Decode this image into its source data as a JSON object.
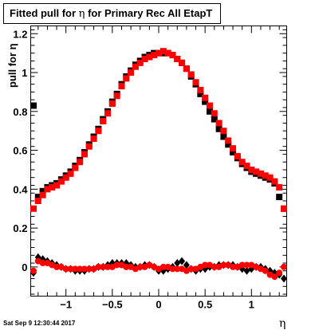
{
  "title": {
    "prefix": "Fitted pull for ",
    "greek": "η",
    "suffix": " for Primary Rec All EtapT"
  },
  "ylabel": "pull for η",
  "xlabel": "η",
  "timestamp": "Sat Sep  9 12:30:44 2017",
  "colors": {
    "series_black": "#000000",
    "series_red": "#ff0000",
    "frame": "#000000"
  },
  "chart_data": {
    "type": "scatter",
    "xlim": [
      -1.38,
      1.38
    ],
    "ylim": [
      -0.15,
      1.24
    ],
    "xticks": [
      -1,
      -0.5,
      0,
      0.5,
      1
    ],
    "xtick_labels": [
      "−1",
      "−0.5",
      "0",
      "0.5",
      "1"
    ],
    "yticks": [
      0,
      0.2,
      0.4,
      0.6,
      0.8,
      1,
      1.2
    ],
    "ytick_labels": [
      "0",
      "0.2",
      "0.4",
      "0.6",
      "0.8",
      "1",
      "1.2"
    ],
    "grid": false,
    "legend": false,
    "series": [
      {
        "color": "#000000",
        "marker": "square",
        "x": [
          -1.35,
          -1.3,
          -1.25,
          -1.2,
          -1.15,
          -1.1,
          -1.05,
          -1.0,
          -0.95,
          -0.9,
          -0.85,
          -0.8,
          -0.75,
          -0.7,
          -0.65,
          -0.6,
          -0.55,
          -0.5,
          -0.45,
          -0.4,
          -0.35,
          -0.3,
          -0.25,
          -0.2,
          -0.15,
          -0.1,
          -0.05,
          0.0,
          0.05,
          0.1,
          0.15,
          0.2,
          0.25,
          0.3,
          0.35,
          0.4,
          0.45,
          0.5,
          0.55,
          0.6,
          0.65,
          0.7,
          0.75,
          0.8,
          0.85,
          0.9,
          0.95,
          1.0,
          1.05,
          1.1,
          1.15,
          1.2,
          1.25,
          1.3,
          1.35
        ],
        "y": [
          0.83,
          0.36,
          0.39,
          0.41,
          0.42,
          0.43,
          0.45,
          0.47,
          0.49,
          0.52,
          0.55,
          0.59,
          0.63,
          0.67,
          0.71,
          0.76,
          0.8,
          0.85,
          0.89,
          0.94,
          0.98,
          1.01,
          1.04,
          1.06,
          1.08,
          1.09,
          1.1,
          1.1,
          1.1,
          1.1,
          1.09,
          1.07,
          1.05,
          1.02,
          0.98,
          0.94,
          0.89,
          0.85,
          0.8,
          0.76,
          0.71,
          0.67,
          0.63,
          0.59,
          0.56,
          0.53,
          0.51,
          0.49,
          0.48,
          0.47,
          0.46,
          0.45,
          0.43,
          0.36,
          0.3
        ]
      },
      {
        "color": "#ff0000",
        "marker": "square",
        "x": [
          -1.35,
          -1.3,
          -1.25,
          -1.2,
          -1.15,
          -1.1,
          -1.05,
          -1.0,
          -0.95,
          -0.9,
          -0.85,
          -0.8,
          -0.75,
          -0.7,
          -0.65,
          -0.6,
          -0.55,
          -0.5,
          -0.45,
          -0.4,
          -0.35,
          -0.3,
          -0.25,
          -0.2,
          -0.15,
          -0.1,
          -0.05,
          0.0,
          0.05,
          0.1,
          0.15,
          0.2,
          0.25,
          0.3,
          0.35,
          0.4,
          0.45,
          0.5,
          0.55,
          0.6,
          0.65,
          0.7,
          0.75,
          0.8,
          0.85,
          0.9,
          0.95,
          1.0,
          1.05,
          1.1,
          1.15,
          1.2,
          1.25,
          1.3,
          1.35
        ],
        "y": [
          0.3,
          0.34,
          0.37,
          0.4,
          0.41,
          0.42,
          0.44,
          0.46,
          0.48,
          0.51,
          0.54,
          0.58,
          0.62,
          0.66,
          0.7,
          0.75,
          0.79,
          0.84,
          0.88,
          0.93,
          0.97,
          1.0,
          1.03,
          1.05,
          1.07,
          1.08,
          1.09,
          1.1,
          1.11,
          1.1,
          1.09,
          1.07,
          1.05,
          1.02,
          0.99,
          0.95,
          0.91,
          0.87,
          0.83,
          0.79,
          0.74,
          0.7,
          0.65,
          0.61,
          0.57,
          0.54,
          0.52,
          0.5,
          0.49,
          0.48,
          0.47,
          0.46,
          0.44,
          0.41,
          0.3
        ]
      },
      {
        "color": "#000000",
        "marker": "diamond",
        "x": [
          -1.35,
          -1.3,
          -1.25,
          -1.2,
          -1.15,
          -1.1,
          -1.05,
          -1.0,
          -0.95,
          -0.9,
          -0.85,
          -0.8,
          -0.75,
          -0.7,
          -0.65,
          -0.6,
          -0.55,
          -0.5,
          -0.45,
          -0.4,
          -0.35,
          -0.3,
          -0.25,
          -0.2,
          -0.15,
          -0.1,
          -0.05,
          0.0,
          0.05,
          0.1,
          0.15,
          0.2,
          0.25,
          0.3,
          0.35,
          0.4,
          0.45,
          0.5,
          0.55,
          0.6,
          0.65,
          0.7,
          0.75,
          0.8,
          0.85,
          0.9,
          0.95,
          1.0,
          1.05,
          1.1,
          1.15,
          1.2,
          1.25,
          1.3,
          1.35
        ],
        "y": [
          -0.03,
          0.05,
          0.04,
          0.03,
          0.02,
          0.01,
          0.0,
          -0.01,
          -0.01,
          -0.02,
          -0.02,
          -0.02,
          -0.01,
          -0.01,
          0.0,
          0.0,
          0.01,
          0.02,
          0.02,
          0.02,
          0.02,
          0.01,
          0.0,
          0.0,
          0.01,
          0.01,
          0.0,
          -0.02,
          -0.02,
          -0.01,
          0.0,
          0.02,
          0.03,
          0.01,
          -0.01,
          -0.02,
          -0.01,
          -0.01,
          0.0,
          0.0,
          0.01,
          0.01,
          0.01,
          0.01,
          0.0,
          -0.01,
          -0.02,
          -0.01,
          0.0,
          0.0,
          -0.01,
          -0.02,
          -0.03,
          -0.04,
          -0.06
        ]
      },
      {
        "color": "#ff0000",
        "marker": "circle",
        "x": [
          -1.35,
          -1.3,
          -1.25,
          -1.2,
          -1.15,
          -1.1,
          -1.05,
          -1.0,
          -0.95,
          -0.9,
          -0.85,
          -0.8,
          -0.75,
          -0.7,
          -0.65,
          -0.6,
          -0.55,
          -0.5,
          -0.45,
          -0.4,
          -0.35,
          -0.3,
          -0.25,
          -0.2,
          -0.15,
          -0.1,
          -0.05,
          0.0,
          0.05,
          0.1,
          0.15,
          0.2,
          0.25,
          0.3,
          0.35,
          0.4,
          0.45,
          0.5,
          0.55,
          0.6,
          0.65,
          0.7,
          0.75,
          0.8,
          0.85,
          0.9,
          0.95,
          1.0,
          1.05,
          1.1,
          1.15,
          1.2,
          1.25,
          1.3,
          1.35
        ],
        "y": [
          -0.02,
          0.03,
          0.02,
          0.02,
          0.01,
          0.0,
          0.0,
          -0.01,
          -0.01,
          -0.01,
          -0.01,
          -0.01,
          -0.01,
          -0.01,
          0.0,
          0.0,
          0.0,
          0.0,
          0.01,
          0.01,
          0.0,
          0.0,
          -0.01,
          0.0,
          0.0,
          0.01,
          0.0,
          -0.01,
          0.0,
          0.0,
          -0.01,
          -0.01,
          -0.01,
          -0.02,
          -0.01,
          -0.01,
          0.0,
          0.01,
          0.01,
          0.0,
          0.0,
          0.01,
          0.01,
          0.0,
          0.0,
          0.01,
          0.01,
          0.01,
          0.0,
          -0.01,
          -0.02,
          -0.04,
          -0.05,
          -0.03,
          0.0
        ]
      }
    ]
  }
}
